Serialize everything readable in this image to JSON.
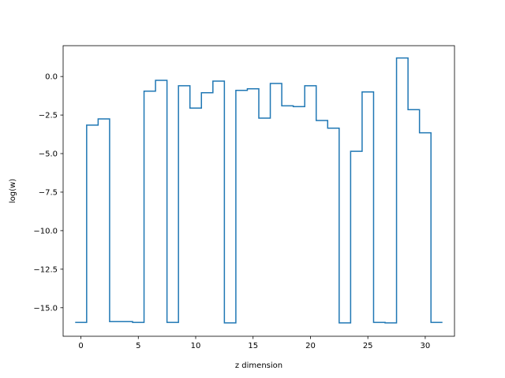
{
  "chart_data": {
    "type": "line",
    "drawstyle": "steps-mid",
    "title": "",
    "xlabel": "z dimension",
    "ylabel": "log(w)",
    "xlim": [
      -1.55,
      32.55
    ],
    "ylim": [
      -16.85,
      2.0
    ],
    "xticks": [
      0,
      5,
      10,
      15,
      20,
      25,
      30
    ],
    "xtick_labels": [
      "0",
      "5",
      "10",
      "15",
      "20",
      "25",
      "30"
    ],
    "yticks": [
      0.0,
      -2.5,
      -5.0,
      -7.5,
      -10.0,
      -12.5,
      -15.0
    ],
    "ytick_labels": [
      "0.0",
      "−2.5",
      "−5.0",
      "−7.5",
      "−10.0",
      "−12.5",
      "−15.0"
    ],
    "grid": false,
    "legend": false,
    "color": "#1f77b4",
    "series": [
      {
        "x": [
          0,
          1,
          2,
          3,
          4,
          5,
          6,
          7,
          8,
          9,
          10,
          11,
          12,
          13,
          14,
          15,
          16,
          17,
          18,
          19,
          20,
          21,
          22,
          23,
          24,
          25,
          26,
          27,
          28,
          29,
          30,
          31
        ],
        "values": [
          -15.95,
          -3.15,
          -2.75,
          -15.9,
          -15.9,
          -15.95,
          -0.95,
          -0.25,
          -15.95,
          -0.6,
          -2.05,
          -1.05,
          -0.3,
          -15.98,
          -0.9,
          -0.8,
          -2.7,
          -0.45,
          -1.9,
          -1.95,
          -0.6,
          -2.85,
          -3.35,
          -15.98,
          -4.85,
          -1.0,
          -15.95,
          -15.98,
          1.2,
          -2.15,
          -3.65,
          -15.95
        ]
      }
    ]
  }
}
